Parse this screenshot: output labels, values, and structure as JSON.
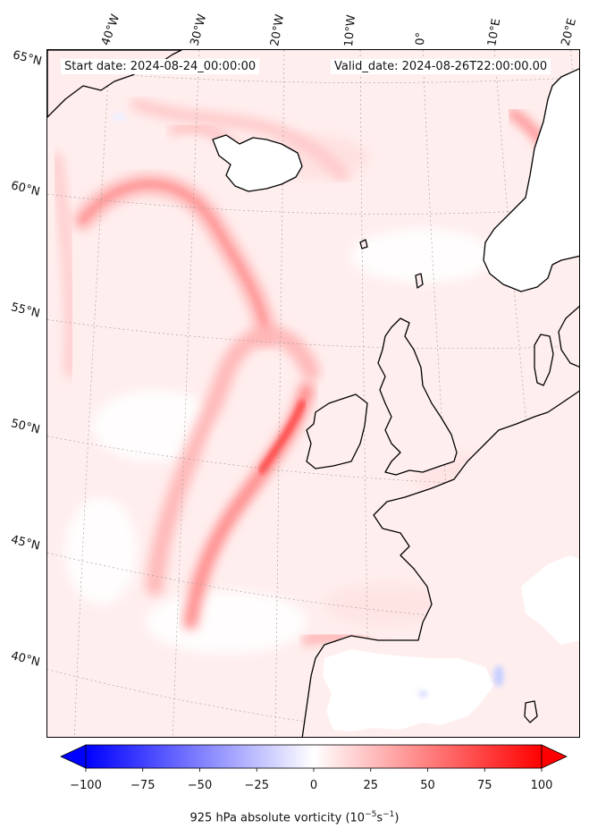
{
  "start_date": "Start date: 2024-08-24_00:00:00",
  "valid_date": "Valid_date: 2024-08-26T22:00:00.00",
  "lon_labels": [
    "40°W",
    "30°W",
    "20°W",
    "10°W",
    "0°",
    "10°E",
    "20°E"
  ],
  "lat_labels": [
    "65°N",
    "60°N",
    "55°N",
    "50°N",
    "45°N",
    "40°N"
  ],
  "colorbar": {
    "ticks": [
      -100,
      -75,
      -50,
      -25,
      0,
      25,
      50,
      75,
      100
    ],
    "tick_labels": [
      "−100",
      "−75",
      "−50",
      "−25",
      "0",
      "25",
      "50",
      "75",
      "100"
    ],
    "label_main": "925 hPa absolute vorticity (10",
    "label_sup1": "−5",
    "label_mid": "s",
    "label_sup2": "−1",
    "label_end": ")",
    "min": -100,
    "max": 100,
    "low_color": "#0000ff",
    "mid_color": "#ffffff",
    "high_color": "#ff0000"
  },
  "colors": {
    "background_field": "#fff0f0",
    "coast": "#000000",
    "gridline": "#9a9a9a"
  }
}
